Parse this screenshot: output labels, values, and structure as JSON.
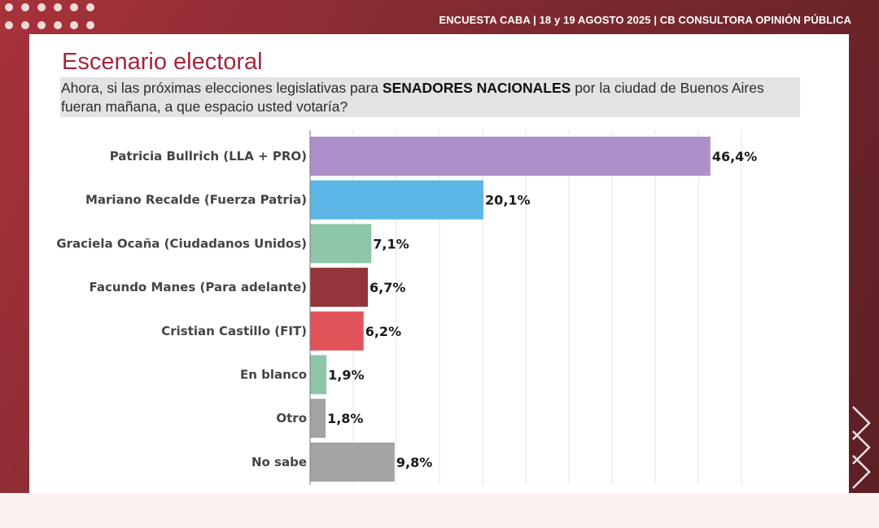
{
  "header": {
    "text": "ENCUESTA CABA  |  18 y 19 AGOSTO 2025 | CB CONSULTORA OPINIÓN PÚBLICA"
  },
  "title": "Escenario electoral",
  "question": {
    "line1_pre": "Ahora, si las próximas elecciones legislativas para ",
    "line1_bold": "SENADORES NACIONALES",
    "line1_post": " por la ciudad de Buenos Aires",
    "line2": "fueran mañana, a que espacio usted votaría?"
  },
  "colors": {
    "accent": "#a3263c",
    "header_bg": "#7e2a30"
  },
  "chart_data": {
    "type": "bar",
    "orientation": "horizontal",
    "title": "Escenario electoral",
    "xlabel": "",
    "ylabel": "",
    "xlim": [
      0,
      50
    ],
    "grid": true,
    "categories": [
      "Patricia Bullrich (LLA + PRO)",
      "Mariano Recalde (Fuerza Patria)",
      "Graciela Ocaña (Ciudadanos Unidos)",
      "Facundo Manes (Para adelante)",
      "Cristian Castillo (FIT)",
      "En blanco",
      "Otro",
      "No sabe"
    ],
    "values": [
      46.4,
      20.1,
      7.1,
      6.7,
      6.2,
      1.9,
      1.8,
      9.8
    ],
    "labels": [
      "46,4%",
      "20,1%",
      "7,1%",
      "6,7%",
      "6,2%",
      "1,9%",
      "1,8%",
      "9,8%"
    ],
    "bar_colors": [
      "#ad8fca",
      "#5db7e6",
      "#8ec6a8",
      "#943539",
      "#e05358",
      "#8ec6a8",
      "#a5a2a2",
      "#a5a2a2"
    ]
  }
}
